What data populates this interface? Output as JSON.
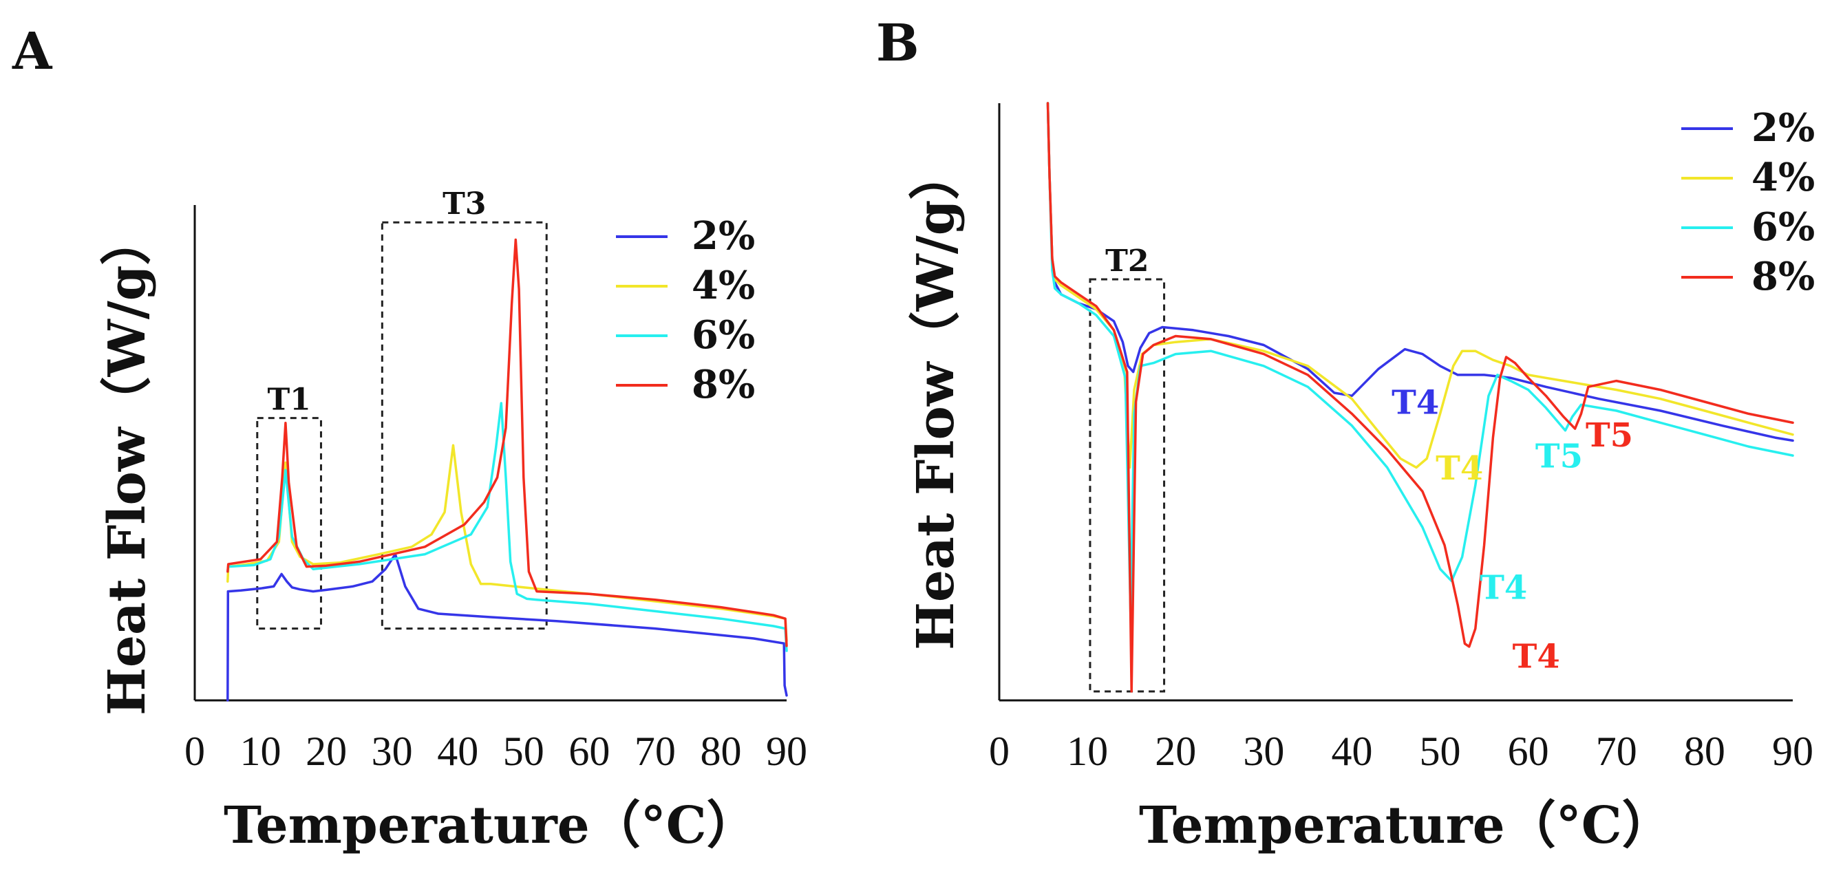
{
  "chart_data": [
    {
      "id": "A",
      "type": "line",
      "panel_label": "A",
      "xlabel": "Temperature",
      "xlabel_unit": "（°C）",
      "ylabel": "Heat Flow",
      "ylabel_unit": "（W/g）",
      "xlim": [
        0,
        90
      ],
      "ylim": [
        0,
        100
      ],
      "xticks": [
        "0",
        "10",
        "20",
        "30",
        "40",
        "50",
        "60",
        "70",
        "80",
        "90"
      ],
      "legend": [
        "2%",
        "4%",
        "6%",
        "8%"
      ],
      "legend_position": "top-right",
      "boxes": [
        {
          "label": "T1",
          "x": [
            9.5,
            19.2
          ],
          "y": [
            14.5,
            57
          ]
        },
        {
          "label": "T3",
          "x": [
            28.5,
            53.5
          ],
          "y": [
            14.5,
            96.5
          ]
        }
      ],
      "series": [
        {
          "name": "2%",
          "color": "#3535e8",
          "x": [
            5,
            5.05,
            7,
            10,
            12,
            13.2,
            14,
            14.8,
            16,
            18,
            20,
            24,
            27,
            29,
            30.5,
            32,
            34,
            37,
            45,
            55,
            70,
            85,
            89.6,
            89.7,
            90
          ],
          "y": [
            0,
            22,
            22.2,
            22.6,
            23,
            25.5,
            24,
            22.8,
            22.4,
            22,
            22.3,
            23,
            24,
            26.5,
            29.5,
            23,
            18.5,
            17.5,
            16.8,
            16,
            14.5,
            12.5,
            11.5,
            3,
            1
          ]
        },
        {
          "name": "4%",
          "color": "#f2e62a",
          "x": [
            5,
            5.1,
            8,
            11,
            12.8,
            13.8,
            14.8,
            16,
            18,
            22,
            28,
            33,
            36,
            38,
            39.3,
            40.5,
            42,
            43.5,
            45,
            50,
            60,
            70,
            80,
            88,
            89.8,
            90
          ],
          "y": [
            24,
            27,
            27.5,
            28.2,
            32,
            48,
            32,
            29,
            27.5,
            27.8,
            29.5,
            31,
            33.5,
            38,
            51.5,
            38,
            27.5,
            23.5,
            23.5,
            22.8,
            21.5,
            20,
            18.5,
            17,
            16.5,
            12
          ]
        },
        {
          "name": "6%",
          "color": "#27efef",
          "x": [
            5,
            5.1,
            9,
            11.5,
            12.8,
            13.8,
            14.8,
            16.5,
            18,
            25,
            35,
            42,
            44.5,
            45.8,
            46.6,
            47.3,
            48,
            49,
            50.5,
            52,
            60,
            70,
            80,
            88,
            89.8,
            90
          ],
          "y": [
            26,
            27,
            27.3,
            28.5,
            33,
            46.5,
            33,
            28.5,
            26.5,
            27.5,
            29.5,
            33.5,
            39,
            51,
            60,
            45,
            28,
            21.5,
            20.5,
            20.3,
            19.5,
            18,
            16.5,
            15,
            14.5,
            10
          ]
        },
        {
          "name": "8%",
          "color": "#f22c1e",
          "x": [
            5,
            5.1,
            10,
            12.5,
            13.3,
            13.8,
            14.3,
            15.5,
            17,
            20,
            25,
            35,
            41,
            44,
            46,
            47.3,
            48.2,
            48.8,
            49.3,
            50,
            50.8,
            52,
            60,
            70,
            80,
            88,
            89.8,
            90
          ],
          "y": [
            26,
            27.5,
            28.5,
            32,
            45,
            56,
            44,
            31,
            27,
            27.2,
            28,
            31,
            35.5,
            40,
            45,
            55,
            80,
            93,
            83,
            45,
            26,
            22,
            21.5,
            20.3,
            18.8,
            17.2,
            16.5,
            11
          ]
        }
      ]
    },
    {
      "id": "B",
      "type": "line",
      "panel_label": "B",
      "xlabel": "Temperature",
      "xlabel_unit": "（°C）",
      "ylabel": "Heat Flow",
      "ylabel_unit": "（W/g）",
      "xlim": [
        0,
        90
      ],
      "ylim": [
        0,
        100
      ],
      "xticks": [
        "0",
        "10",
        "20",
        "30",
        "40",
        "50",
        "60",
        "70",
        "80",
        "90"
      ],
      "legend": [
        "2%",
        "4%",
        "6%",
        "8%"
      ],
      "legend_position": "top-right",
      "boxes": [
        {
          "label": "T2",
          "x": [
            10.3,
            18.7
          ],
          "y": [
            1.5,
            70.5
          ]
        }
      ],
      "annotations": [
        {
          "text": "T4",
          "series": "2%",
          "x": 44.5,
          "y": 48
        },
        {
          "text": "T4",
          "series": "4%",
          "x": 49.5,
          "y": 37
        },
        {
          "text": "T4",
          "series": "6%",
          "x": 54.5,
          "y": 17
        },
        {
          "text": "T4",
          "series": "8%",
          "x": 58.2,
          "y": 5.5
        },
        {
          "text": "T5",
          "series": "6%",
          "x": 60.8,
          "y": 39
        },
        {
          "text": "T5",
          "series": "8%",
          "x": 66.5,
          "y": 42.5
        }
      ],
      "series": [
        {
          "name": "2%",
          "color": "#3535e8",
          "x": [
            5.5,
            5.7,
            6,
            6.3,
            7,
            9,
            11,
            13,
            14,
            14.6,
            15.2,
            16,
            17,
            18.5,
            22,
            26,
            30,
            35,
            38,
            40,
            43,
            46,
            48,
            50,
            52,
            55,
            58,
            62,
            68,
            75,
            82,
            88,
            90
          ],
          "y": [
            100,
            88,
            74,
            70,
            68,
            66.5,
            65.5,
            63.5,
            60,
            56,
            55,
            59,
            61.5,
            62.5,
            62,
            61,
            59.5,
            55.5,
            51.5,
            51,
            55.5,
            58.8,
            58,
            56,
            54.5,
            54.5,
            54,
            52.5,
            50.5,
            48.5,
            46,
            44,
            43.5
          ]
        },
        {
          "name": "4%",
          "color": "#f2e62a",
          "x": [
            5.5,
            5.7,
            6,
            6.3,
            7,
            9,
            11,
            13,
            14.2,
            14.8,
            15.3,
            16.2,
            17.5,
            20,
            24,
            30,
            35,
            40,
            43,
            45.5,
            47.3,
            48.5,
            50,
            51.5,
            52.5,
            54,
            56,
            58,
            60,
            62,
            64,
            66,
            70,
            75,
            80,
            85,
            90
          ],
          "y": [
            100,
            88,
            74,
            70.5,
            69.5,
            67.5,
            65.5,
            62,
            55,
            39,
            52,
            58,
            59.5,
            60,
            60.5,
            58.5,
            56,
            50.5,
            45,
            40.5,
            39,
            40.5,
            48,
            56,
            58.5,
            58.5,
            57,
            56,
            54.5,
            54,
            53.5,
            53,
            52,
            50.5,
            48.5,
            46.5,
            44.5
          ]
        },
        {
          "name": "6%",
          "color": "#27efef",
          "x": [
            5.5,
            5.7,
            6,
            6.3,
            7,
            9,
            11,
            13,
            14.3,
            14.9,
            15.3,
            16,
            17.5,
            20,
            24,
            30,
            35,
            40,
            44,
            48,
            50,
            51.3,
            52.5,
            54,
            55.5,
            56.5,
            58,
            60,
            62,
            64.2,
            65,
            66,
            70,
            75,
            80,
            85,
            90
          ],
          "y": [
            100,
            88,
            72,
            69,
            68,
            66.5,
            64.5,
            61,
            54,
            14,
            48,
            56,
            56.5,
            58,
            58.5,
            56,
            52.5,
            46,
            39,
            29,
            22,
            20,
            24,
            36,
            51,
            54.5,
            53.5,
            52,
            49,
            45.2,
            47.5,
            49.5,
            48.5,
            46.5,
            44.5,
            42.5,
            41
          ]
        },
        {
          "name": "8%",
          "color": "#f22c1e",
          "x": [
            5.5,
            5.7,
            6,
            6.3,
            7,
            9,
            11,
            13,
            14.5,
            15,
            15.5,
            16.3,
            17.5,
            20,
            24,
            30,
            35,
            40,
            44,
            48,
            50.5,
            52,
            52.8,
            53.3,
            54,
            55,
            56,
            56.8,
            57.5,
            58.5,
            60,
            62,
            64,
            65.3,
            66,
            66.8,
            70,
            75,
            80,
            85,
            90
          ],
          "y": [
            100,
            88,
            74,
            71,
            70,
            68,
            66,
            62,
            55,
            1.5,
            50,
            58,
            59.5,
            61,
            60.5,
            58,
            54.5,
            48,
            42,
            35,
            26,
            16,
            9.5,
            9,
            12,
            26,
            44,
            54,
            57.5,
            56.5,
            54,
            51,
            47.5,
            45.5,
            48,
            52.5,
            53.5,
            52,
            50,
            48,
            46.5
          ]
        }
      ]
    }
  ]
}
